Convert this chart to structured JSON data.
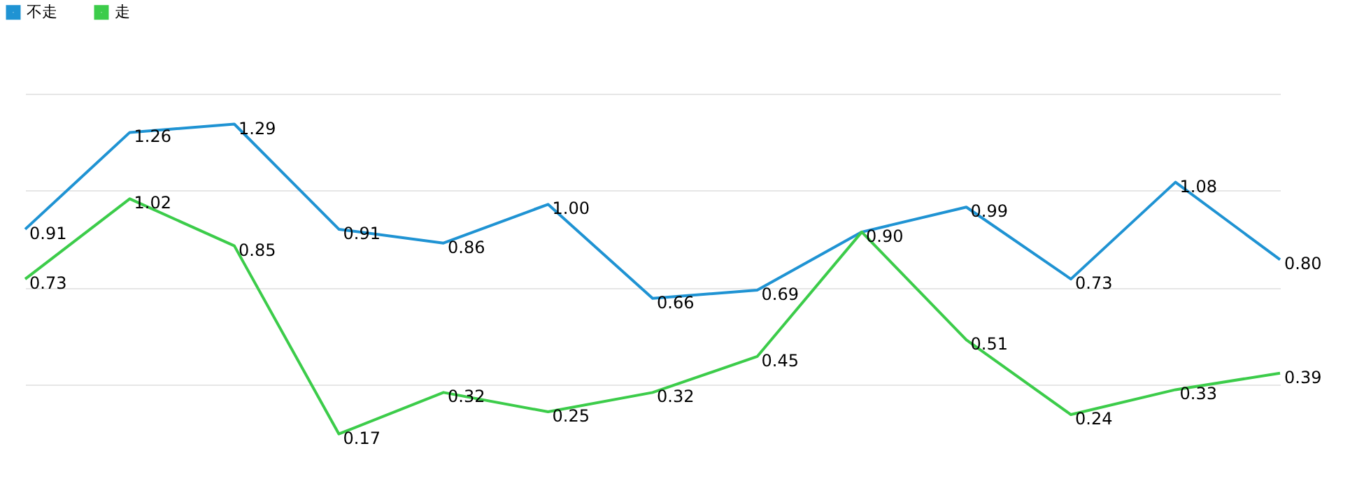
{
  "chart_data": {
    "type": "line",
    "categories": [
      null,
      null,
      null,
      null,
      null,
      null,
      null,
      null,
      null,
      null,
      null,
      null,
      null
    ],
    "series": [
      {
        "name": "不走",
        "color": "#1f93d3",
        "values": [
          0.91,
          1.26,
          1.29,
          0.91,
          0.86,
          1.0,
          0.66,
          0.69,
          0.9,
          0.99,
          0.73,
          1.08,
          0.8
        ],
        "value_labels": [
          "0.91",
          "1.26",
          "1.29",
          "0.91",
          "0.86",
          "1.00",
          "0.66",
          "0.69",
          "0.90",
          "0.99",
          "0.73",
          "1.08",
          "0.80"
        ]
      },
      {
        "name": "走",
        "color": "#3ccc4a",
        "values": [
          0.73,
          1.02,
          0.85,
          0.17,
          0.32,
          0.25,
          0.32,
          0.45,
          0.9,
          0.51,
          0.24,
          0.33,
          0.39
        ],
        "value_labels": [
          "0.73",
          "1.02",
          "0.85",
          "0.17",
          "0.32",
          "0.25",
          "0.32",
          "0.45",
          null,
          "0.51",
          "0.24",
          "0.33",
          "0.39"
        ]
      }
    ],
    "ylim": [
      0,
      1.4
    ],
    "yticks": [
      {
        "value": 0.35,
        "label": null
      },
      {
        "value": 0.7,
        "label": null
      },
      {
        "value": 1.05,
        "label": null
      },
      {
        "value": 1.4,
        "label": null
      }
    ],
    "grid": "y",
    "legend": "top left",
    "marker": "none",
    "line_style": "solid"
  }
}
